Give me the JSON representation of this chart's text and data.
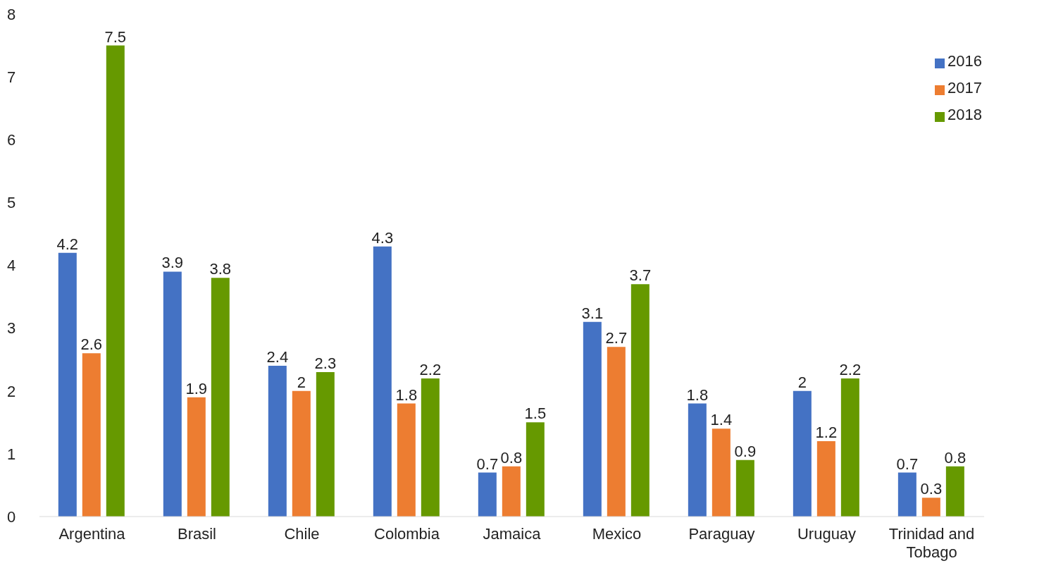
{
  "chart_data": {
    "type": "bar",
    "categories": [
      "Argentina",
      "Brasil",
      "Chile",
      "Colombia",
      "Jamaica",
      "Mexico",
      "Paraguay",
      "Uruguay",
      "Trinidad and Tobago"
    ],
    "series": [
      {
        "name": "2016",
        "color": "#4472c4",
        "values": [
          4.2,
          3.9,
          2.4,
          4.3,
          0.7,
          3.1,
          1.8,
          2,
          0.7
        ]
      },
      {
        "name": "2017",
        "color": "#ed7d31",
        "values": [
          2.6,
          1.9,
          2,
          1.8,
          0.8,
          2.7,
          1.4,
          1.2,
          0.3
        ]
      },
      {
        "name": "2018",
        "color": "#669900",
        "values": [
          7.5,
          3.8,
          2.3,
          2.2,
          1.5,
          3.7,
          0.9,
          2.2,
          0.8
        ]
      }
    ],
    "ylim": [
      0,
      8
    ],
    "yticks": [
      0,
      1,
      2,
      3,
      4,
      5,
      6,
      7,
      8
    ],
    "grid": false,
    "legend": "top right",
    "data_labels": true
  }
}
